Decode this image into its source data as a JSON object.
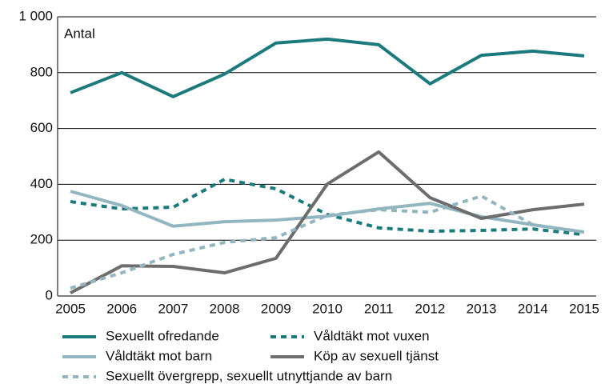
{
  "chart_data": {
    "type": "line",
    "annotation": "Antal",
    "x": [
      "2005",
      "2006",
      "2007",
      "2008",
      "2009",
      "2010",
      "2011",
      "2012",
      "2013",
      "2014",
      "2015"
    ],
    "ylim": [
      0,
      1000
    ],
    "yticks": [
      0,
      200,
      400,
      600,
      800,
      {
        "value": 1000,
        "label": "1 000"
      }
    ],
    "grid": true,
    "series": [
      {
        "name": "Sexuellt ofredande",
        "color": "#1b7a7c",
        "dash": false,
        "values": [
          728,
          800,
          714,
          795,
          906,
          920,
          900,
          760,
          862,
          877,
          860
        ]
      },
      {
        "name": "Våldtäkt mot vuxen",
        "color": "#1b7a7c",
        "dash": true,
        "values": [
          338,
          312,
          318,
          418,
          384,
          292,
          244,
          232,
          235,
          240,
          220
        ]
      },
      {
        "name": "Våldtäkt mot barn",
        "color": "#92b6c0",
        "dash": false,
        "values": [
          375,
          324,
          250,
          266,
          272,
          286,
          312,
          332,
          284,
          255,
          229
        ]
      },
      {
        "name": "Köp av sexuell tjänst",
        "color": "#6d6d6d",
        "dash": false,
        "values": [
          11,
          108,
          106,
          83,
          135,
          401,
          516,
          352,
          278,
          309,
          329
        ]
      },
      {
        "name": "Sexuellt övergrepp, sexuellt utnyttjande av barn",
        "color": "#92b6c0",
        "dash": true,
        "values": [
          28,
          83,
          149,
          192,
          209,
          289,
          309,
          300,
          358,
          255,
          229
        ]
      }
    ]
  }
}
